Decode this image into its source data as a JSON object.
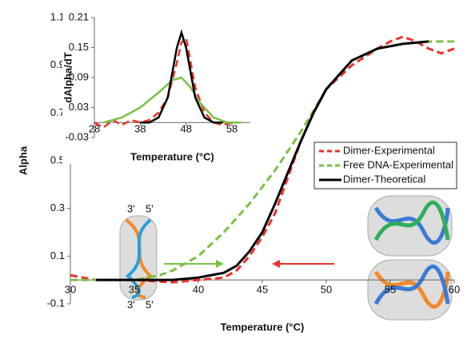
{
  "chart_data": [
    {
      "type": "line",
      "xlabel": "Temperature (°C)",
      "ylabel": "Alpha",
      "xlim": [
        30,
        60
      ],
      "xticks": [
        30,
        35,
        40,
        45,
        50,
        55,
        60
      ],
      "ylim": [
        -0.1,
        1.1
      ],
      "yticks": [
        -0.1,
        0.1,
        0.3,
        0.5,
        0.7,
        0.9,
        1.1
      ],
      "legend": "right",
      "annotations": [
        "3'",
        "5'",
        "3'",
        "5'"
      ],
      "series": [
        {
          "name": "Dimer-Experimental",
          "color": "#e8312a",
          "style": "dashed",
          "x": [
            30,
            31,
            32,
            35,
            38,
            40,
            42,
            43,
            44,
            45,
            46,
            47,
            48,
            49,
            50,
            52,
            54,
            55,
            56,
            57,
            58,
            59,
            60
          ],
          "values": [
            0.02,
            0.01,
            0,
            0,
            -0.01,
            0,
            0.01,
            0.04,
            0.1,
            0.18,
            0.28,
            0.43,
            0.58,
            0.7,
            0.8,
            0.9,
            0.97,
            1.0,
            1.02,
            1.0,
            0.97,
            0.95,
            0.97
          ]
        },
        {
          "name": "Free DNA-Experimental",
          "color": "#7ac143",
          "style": "dashed",
          "x": [
            30,
            33,
            35,
            37,
            38,
            40,
            42,
            44,
            46,
            48,
            50,
            52,
            54,
            56,
            58,
            60
          ],
          "values": [
            0,
            0,
            0,
            0.02,
            0.04,
            0.1,
            0.2,
            0.32,
            0.46,
            0.62,
            0.8,
            0.92,
            0.97,
            0.99,
            1.0,
            1.0
          ]
        },
        {
          "name": "Dimer-Theoretical",
          "color": "#000000",
          "style": "solid",
          "x": [
            32,
            35,
            38,
            40,
            42,
            43,
            44,
            45,
            46,
            47,
            48,
            49,
            50,
            52,
            54,
            56,
            58
          ],
          "values": [
            0,
            0,
            0,
            0.01,
            0.03,
            0.06,
            0.12,
            0.2,
            0.32,
            0.45,
            0.58,
            0.7,
            0.8,
            0.92,
            0.97,
            0.99,
            1.0
          ]
        }
      ]
    },
    {
      "type": "line",
      "xlabel": "Temperature (°C)",
      "ylabel": "dAlpha/dT",
      "xlim": [
        28,
        62
      ],
      "xticks": [
        28,
        38,
        48,
        58
      ],
      "ylim": [
        -0.03,
        0.21
      ],
      "yticks": [
        -0.03,
        0.03,
        0.09,
        0.15,
        0.21
      ],
      "series": [
        {
          "color": "#e8312a",
          "style": "dashed",
          "x": [
            28,
            30,
            32,
            34,
            36,
            38,
            40,
            42,
            44,
            46,
            47,
            48,
            49,
            50,
            52,
            54,
            56,
            58
          ],
          "values": [
            0,
            -0.01,
            0.005,
            -0.005,
            0.005,
            0,
            0.005,
            0.02,
            0.05,
            0.12,
            0.16,
            0.17,
            0.12,
            0.07,
            0.02,
            0,
            -0.005,
            0
          ]
        },
        {
          "color": "#7ac143",
          "style": "solid",
          "x": [
            30,
            34,
            38,
            42,
            45,
            47,
            49,
            51,
            54,
            57,
            60
          ],
          "values": [
            0,
            0.01,
            0.03,
            0.06,
            0.085,
            0.09,
            0.07,
            0.04,
            0.01,
            0,
            0
          ]
        },
        {
          "color": "#000000",
          "style": "solid",
          "x": [
            38,
            40,
            42,
            44,
            45,
            46,
            47,
            48,
            49,
            50,
            52,
            54,
            56
          ],
          "values": [
            0,
            0,
            0.01,
            0.05,
            0.1,
            0.15,
            0.18,
            0.15,
            0.1,
            0.05,
            0.01,
            0,
            0
          ]
        }
      ]
    }
  ]
}
